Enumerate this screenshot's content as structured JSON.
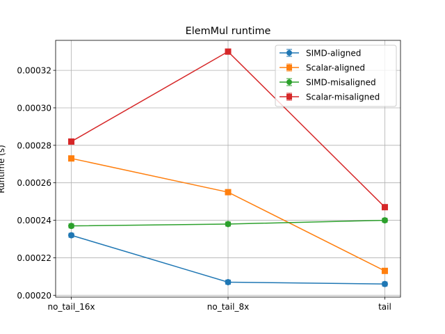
{
  "chart_data": {
    "type": "line",
    "title": "ElemMul runtime",
    "xlabel": "",
    "ylabel": "Runtime (s)",
    "categories": [
      "no_tail_16x",
      "no_tail_8x",
      "tail"
    ],
    "ylim": [
      0.000199,
      0.000336
    ],
    "yticks": [
      "0.00020",
      "0.00022",
      "0.00024",
      "0.00026",
      "0.00028",
      "0.00030",
      "0.00032"
    ],
    "grid": true,
    "legend_position": "top-right",
    "error_bars": true,
    "series": [
      {
        "name": "SIMD-aligned",
        "color": "#1f77b4",
        "marker": "circle",
        "values": [
          0.000232,
          0.000207,
          0.000206
        ]
      },
      {
        "name": "Scalar-aligned",
        "color": "#ff7f0e",
        "marker": "square",
        "values": [
          0.000273,
          0.000255,
          0.000213
        ]
      },
      {
        "name": "SIMD-misaligned",
        "color": "#2ca02c",
        "marker": "circle",
        "values": [
          0.000237,
          0.000238,
          0.00024
        ]
      },
      {
        "name": "Scalar-misaligned",
        "color": "#d62728",
        "marker": "square",
        "values": [
          0.000282,
          0.00033,
          0.000247
        ]
      }
    ]
  }
}
